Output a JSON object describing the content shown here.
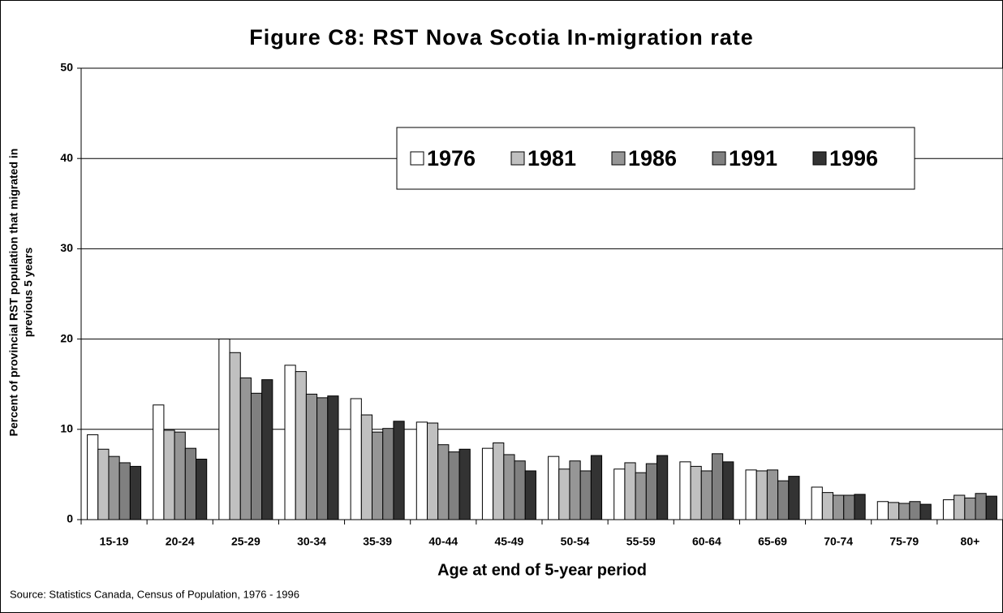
{
  "chart_data": {
    "type": "bar",
    "title": "Figure C8: RST Nova Scotia In-migration rate",
    "xlabel": "Age at end of 5-year period",
    "ylabel": [
      "Percent of provincial RST population that migrated in",
      "previous 5 years"
    ],
    "source": "Source: Statistics Canada, Census of Population, 1976 - 1996",
    "categories": [
      "15-19",
      "20-24",
      "25-29",
      "30-34",
      "35-39",
      "40-44",
      "45-49",
      "50-54",
      "55-59",
      "60-64",
      "65-69",
      "70-74",
      "75-79",
      "80+"
    ],
    "series": [
      {
        "name": "1976",
        "color": "#ffffff",
        "values": [
          9.4,
          12.7,
          20.0,
          17.1,
          13.4,
          10.8,
          7.9,
          7.0,
          5.6,
          6.4,
          5.5,
          3.6,
          2.0,
          2.2
        ]
      },
      {
        "name": "1981",
        "color": "#c0c0c0",
        "values": [
          7.8,
          9.9,
          18.5,
          16.4,
          11.6,
          10.7,
          8.5,
          5.6,
          6.3,
          5.9,
          5.4,
          3.0,
          1.9,
          2.7
        ]
      },
      {
        "name": "1986",
        "color": "#969696",
        "values": [
          7.0,
          9.7,
          15.7,
          13.9,
          9.7,
          8.3,
          7.2,
          6.5,
          5.2,
          5.4,
          5.5,
          2.7,
          1.8,
          2.4
        ]
      },
      {
        "name": "1991",
        "color": "#808080",
        "values": [
          6.3,
          7.9,
          14.0,
          13.5,
          10.1,
          7.5,
          6.5,
          5.4,
          6.2,
          7.3,
          4.3,
          2.7,
          2.0,
          2.9
        ]
      },
      {
        "name": "1996",
        "color": "#333333",
        "values": [
          5.9,
          6.7,
          15.5,
          13.7,
          10.9,
          7.8,
          5.4,
          7.1,
          7.1,
          6.4,
          4.8,
          2.8,
          1.7,
          2.6
        ]
      }
    ],
    "ylim": [
      0,
      50
    ],
    "yticks": [
      0,
      10,
      20,
      30,
      40,
      50
    ],
    "grid": true,
    "legend": "upper right"
  }
}
